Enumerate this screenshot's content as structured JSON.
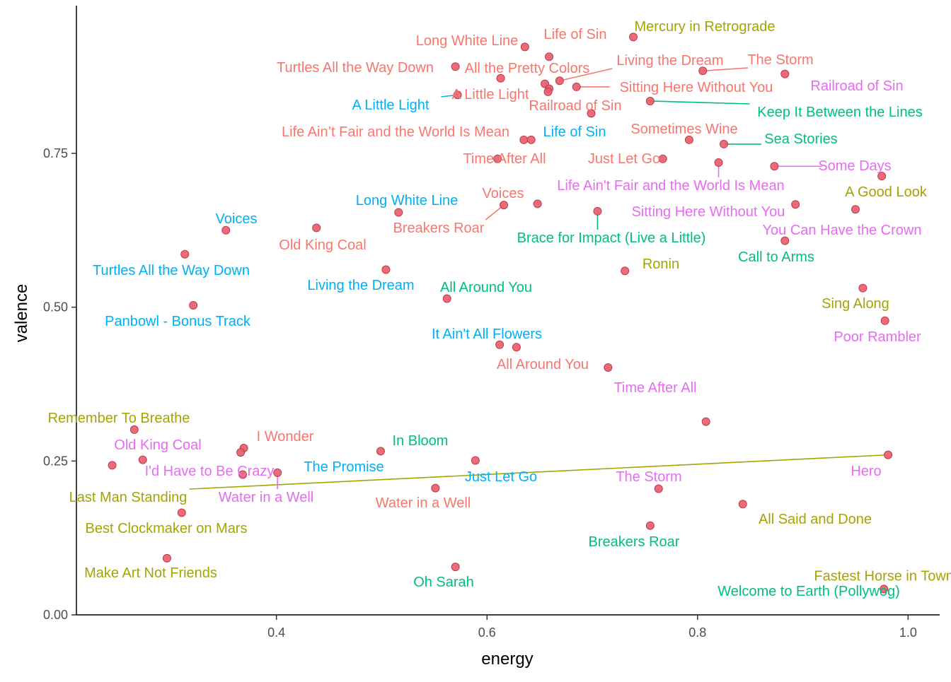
{
  "chart_data": {
    "type": "scatter",
    "title": "",
    "xlabel": "energy",
    "ylabel": "valence",
    "xlim": [
      0.21,
      1.03
    ],
    "ylim": [
      0.0,
      0.99
    ],
    "x_ticks": [
      0.4,
      0.6,
      0.8,
      1.0
    ],
    "x_tick_labels": [
      "0.4",
      "0.6",
      "0.8",
      "1.0"
    ],
    "y_ticks": [
      0.0,
      0.25,
      0.5,
      0.75
    ],
    "y_tick_labels": [
      "0.00",
      "0.25",
      "0.50",
      "0.75"
    ],
    "grid": false,
    "legend": "none",
    "point_color": "#e8606e",
    "label_colors": {
      "red": "#f8766d",
      "olive": "#a3a500",
      "green": "#00bf7d",
      "blue": "#00b0f6",
      "pink": "#e76bf3"
    },
    "points": [
      {
        "x": 0.636,
        "y": 0.923,
        "label": "Long White Line",
        "color": "red"
      },
      {
        "x": 0.659,
        "y": 0.907,
        "label": "Life of Sin",
        "color": "red"
      },
      {
        "x": 0.739,
        "y": 0.939,
        "label": "Mercury in Retrograde",
        "color": "olive"
      },
      {
        "x": 0.57,
        "y": 0.891,
        "label": "Turtles All the Way Down",
        "color": "red"
      },
      {
        "x": 0.613,
        "y": 0.872,
        "label": "All the Pretty Colors",
        "color": "red"
      },
      {
        "x": 0.655,
        "y": 0.863,
        "label": "",
        "color": "red"
      },
      {
        "x": 0.669,
        "y": 0.868,
        "label": "Living the Dream",
        "color": "red"
      },
      {
        "x": 0.805,
        "y": 0.884,
        "label": "The Storm",
        "color": "red"
      },
      {
        "x": 0.883,
        "y": 0.879,
        "label": "Railroad of Sin",
        "color": "pink"
      },
      {
        "x": 0.572,
        "y": 0.845,
        "label": "A Little Light",
        "color": "blue"
      },
      {
        "x": 0.659,
        "y": 0.855,
        "label": "",
        "color": "red"
      },
      {
        "x": 0.685,
        "y": 0.858,
        "label": "Sitting Here Without You",
        "color": "red"
      },
      {
        "x": 0.658,
        "y": 0.85,
        "label": "A Little Light",
        "color": "red"
      },
      {
        "x": 0.755,
        "y": 0.835,
        "label": "Keep It Between the Lines",
        "color": "green"
      },
      {
        "x": 0.699,
        "y": 0.815,
        "label": "Railroad of Sin",
        "color": "red"
      },
      {
        "x": 0.635,
        "y": 0.772,
        "label": "Life Ain’t Fair and the World Is Mean",
        "color": "red"
      },
      {
        "x": 0.642,
        "y": 0.772,
        "label": "Life of Sin",
        "color": "blue"
      },
      {
        "x": 0.792,
        "y": 0.772,
        "label": "Sometimes Wine",
        "color": "red"
      },
      {
        "x": 0.825,
        "y": 0.765,
        "label": "Sea Stories",
        "color": "green"
      },
      {
        "x": 0.767,
        "y": 0.741,
        "label": "Just Let Go",
        "color": "red"
      },
      {
        "x": 0.61,
        "y": 0.741,
        "label": "Time After All",
        "color": "red"
      },
      {
        "x": 0.82,
        "y": 0.735,
        "label": "Life Ain't Fair and the World Is Mean",
        "color": "pink"
      },
      {
        "x": 0.873,
        "y": 0.729,
        "label": "Some Days",
        "color": "pink"
      },
      {
        "x": 0.975,
        "y": 0.713,
        "label": "A Good Look",
        "color": "olive"
      },
      {
        "x": 0.648,
        "y": 0.668,
        "label": "Voices",
        "color": "red"
      },
      {
        "x": 0.616,
        "y": 0.666,
        "label": "Breakers Roar",
        "color": "red"
      },
      {
        "x": 0.893,
        "y": 0.667,
        "label": "Sitting Here Without You",
        "color": "pink"
      },
      {
        "x": 0.95,
        "y": 0.659,
        "label": "You Can Have the Crown",
        "color": "pink"
      },
      {
        "x": 0.516,
        "y": 0.654,
        "label": "Long White Line",
        "color": "blue"
      },
      {
        "x": 0.705,
        "y": 0.656,
        "label": "Brace for Impact (Live a Little)",
        "color": "green"
      },
      {
        "x": 0.352,
        "y": 0.625,
        "label": "Voices",
        "color": "blue"
      },
      {
        "x": 0.438,
        "y": 0.629,
        "label": "Old King Coal",
        "color": "red"
      },
      {
        "x": 0.883,
        "y": 0.608,
        "label": "Call to Arms",
        "color": "green"
      },
      {
        "x": 0.313,
        "y": 0.586,
        "label": "Turtles All the Way Down",
        "color": "blue"
      },
      {
        "x": 0.504,
        "y": 0.561,
        "label": "Living the Dream",
        "color": "blue"
      },
      {
        "x": 0.731,
        "y": 0.559,
        "label": "Ronin",
        "color": "olive"
      },
      {
        "x": 0.957,
        "y": 0.531,
        "label": "Sing Along",
        "color": "olive"
      },
      {
        "x": 0.562,
        "y": 0.514,
        "label": "All Around You",
        "color": "green"
      },
      {
        "x": 0.321,
        "y": 0.503,
        "label": "Panbowl - Bonus Track",
        "color": "blue"
      },
      {
        "x": 0.978,
        "y": 0.478,
        "label": "Poor Rambler",
        "color": "pink"
      },
      {
        "x": 0.612,
        "y": 0.439,
        "label": "It Ain't All Flowers",
        "color": "blue"
      },
      {
        "x": 0.628,
        "y": 0.435,
        "label": "All Around You",
        "color": "red"
      },
      {
        "x": 0.715,
        "y": 0.402,
        "label": "Time After All",
        "color": "pink"
      },
      {
        "x": 0.808,
        "y": 0.314,
        "label": "Remember To Breathe",
        "color": "olive"
      },
      {
        "x": 0.265,
        "y": 0.301,
        "label": "I Wonder",
        "color": "red"
      },
      {
        "x": 0.369,
        "y": 0.271,
        "label": "I'd Have to Be Crazy",
        "color": "pink"
      },
      {
        "x": 0.366,
        "y": 0.264,
        "label": "In Bloom",
        "color": "green"
      },
      {
        "x": 0.499,
        "y": 0.266,
        "label": "Old King Coal",
        "color": "pink"
      },
      {
        "x": 0.273,
        "y": 0.252,
        "label": "Just Let Go",
        "color": "blue"
      },
      {
        "x": 0.589,
        "y": 0.251,
        "label": "Hero",
        "color": "pink"
      },
      {
        "x": 0.981,
        "y": 0.26,
        "label": "Last Man Standing",
        "color": "olive"
      },
      {
        "x": 0.244,
        "y": 0.243,
        "label": "The Promise",
        "color": "blue"
      },
      {
        "x": 0.401,
        "y": 0.231,
        "label": "Water in a Well",
        "color": "pink"
      },
      {
        "x": 0.368,
        "y": 0.228,
        "label": "Water in a Well",
        "color": "red"
      },
      {
        "x": 0.551,
        "y": 0.206,
        "label": "The Storm",
        "color": "pink"
      },
      {
        "x": 0.763,
        "y": 0.205,
        "label": "All Said and Done",
        "color": "olive"
      },
      {
        "x": 0.843,
        "y": 0.18,
        "label": "Best Clockmaker on Mars",
        "color": "olive"
      },
      {
        "x": 0.31,
        "y": 0.166,
        "label": "Breakers Roar",
        "color": "green"
      },
      {
        "x": 0.755,
        "y": 0.145,
        "label": "Make Art Not Friends",
        "color": "olive"
      },
      {
        "x": 0.296,
        "y": 0.092,
        "label": "Oh Sarah",
        "color": "green"
      },
      {
        "x": 0.57,
        "y": 0.078,
        "label": "Welcome to Earth (Pollywog)",
        "color": "green"
      },
      {
        "x": 0.977,
        "y": 0.042,
        "label": "Fastest Horse in Town",
        "color": "olive"
      }
    ]
  }
}
